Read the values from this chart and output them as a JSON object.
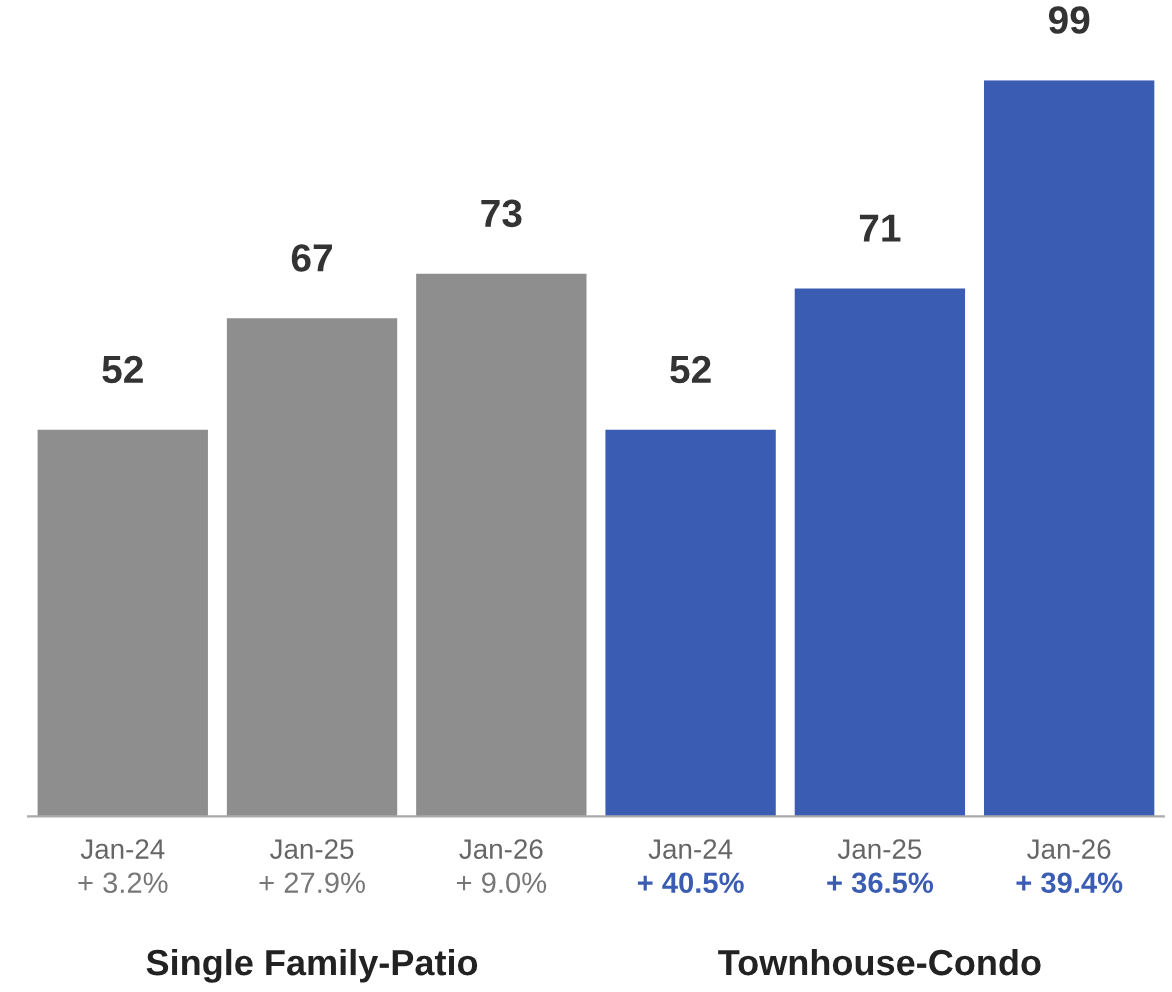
{
  "chart_data": {
    "type": "bar",
    "categories": [
      "Jan-24\n+ 3.2%",
      "Jan-25\n+ 27.9%",
      "Jan-26\n+ 9.0%",
      "Jan-24\n+ 40.5%",
      "Jan-25\n+ 36.5%",
      "Jan-26\n+ 39.4%"
    ],
    "series": [
      {
        "color": "#8e8e8e",
        "values": [
          52,
          67,
          73,
          null,
          null,
          null
        ]
      },
      {
        "color": "#3a5cb2",
        "values": [
          null,
          null,
          null,
          52,
          71,
          99
        ]
      }
    ],
    "annotations": [
      "Single Family-Patio",
      "Townhouse-Condo"
    ],
    "data_labels": true,
    "legend": false
  }
}
